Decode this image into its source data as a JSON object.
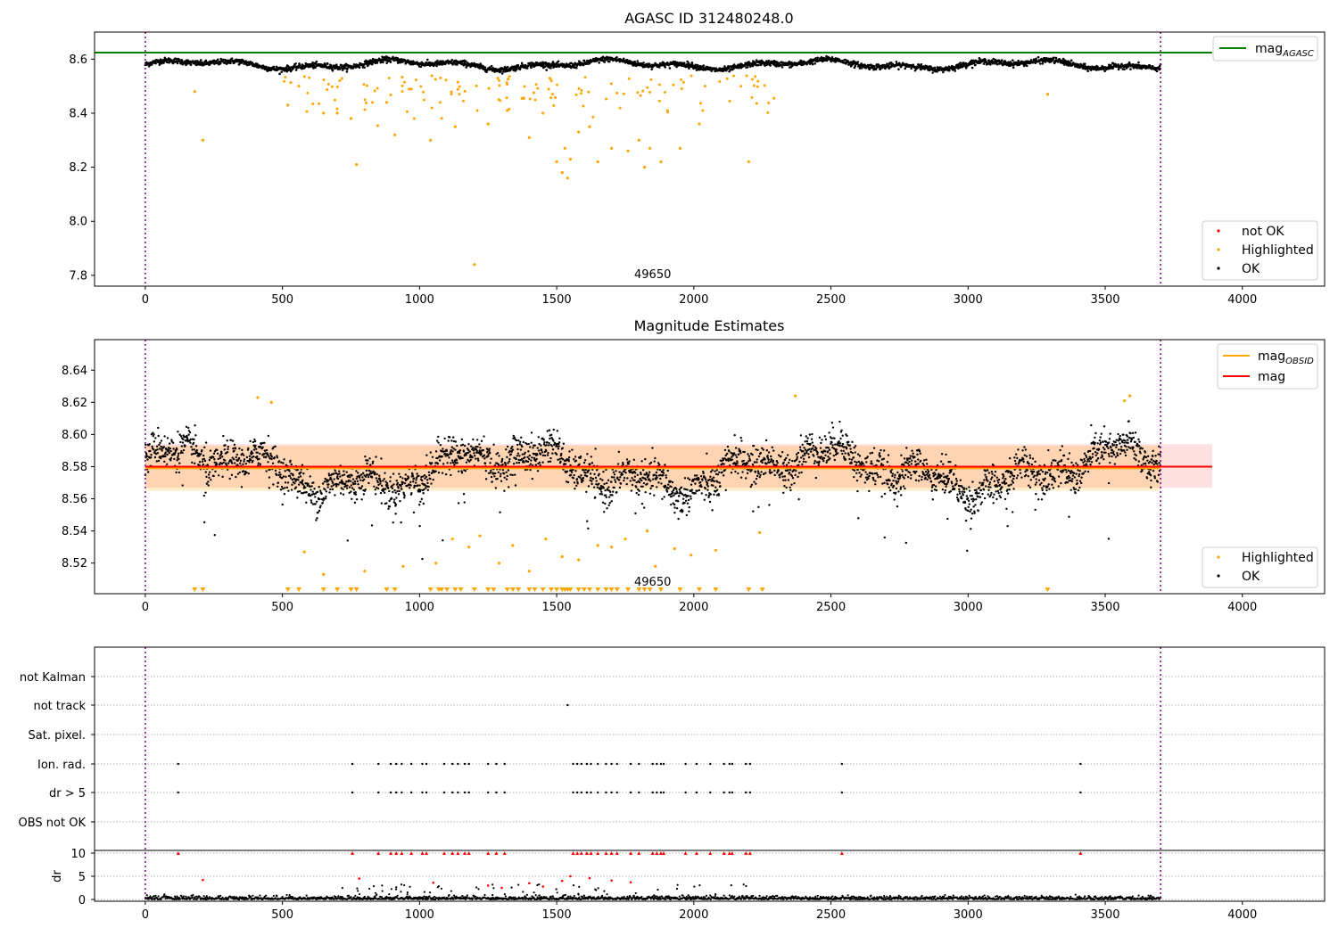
{
  "chart_data": [
    {
      "type": "scatter",
      "title": "AGASC ID 312480248.0",
      "xlim": [
        -185,
        4300
      ],
      "ylim": [
        7.76,
        8.7
      ],
      "xticks": [
        0,
        500,
        1000,
        1500,
        2000,
        2500,
        3000,
        3500,
        4000
      ],
      "yticks": [
        7.8,
        8.0,
        8.2,
        8.4,
        8.6
      ],
      "ytick_labels": [
        "7.8",
        "8.0",
        "8.2",
        "8.4",
        "8.6"
      ],
      "obsid_label": "49650",
      "obsid_bounds": [
        0,
        3702
      ],
      "mag_agasc": 8.624,
      "legend_lines": [
        {
          "name": "mag",
          "sub": "AGASC",
          "color": "#008000"
        }
      ],
      "legend_points": [
        {
          "name": "not OK",
          "color": "#ff0000"
        },
        {
          "name": "Highlighted",
          "color": "#ffa500"
        },
        {
          "name": "OK",
          "color": "#000000"
        }
      ],
      "series": [
        {
          "name": "OK",
          "color": "#000000",
          "description": "dense band near 8.58",
          "x_range": [
            0,
            3702
          ],
          "y_center": 8.58
        },
        {
          "name": "Highlighted",
          "color": "#ffa500",
          "x": [
            180,
            210,
            520,
            560,
            650,
            700,
            750,
            770,
            880,
            910,
            1040,
            1130,
            1200,
            1250,
            1320,
            1400,
            1450,
            1500,
            1520,
            1530,
            1540,
            1550,
            1580,
            1620,
            1650,
            1700,
            1760,
            1800,
            1820,
            1840,
            1880,
            1950,
            2020,
            2200,
            3290
          ],
          "y": [
            8.48,
            8.3,
            8.43,
            8.5,
            8.4,
            8.4,
            8.38,
            8.21,
            8.44,
            8.32,
            8.3,
            8.35,
            7.84,
            8.36,
            8.41,
            8.31,
            8.4,
            8.22,
            8.18,
            8.27,
            8.16,
            8.23,
            8.33,
            8.35,
            8.22,
            8.27,
            8.26,
            8.3,
            8.2,
            8.27,
            8.22,
            8.27,
            8.36,
            8.22,
            8.47
          ]
        }
      ]
    },
    {
      "type": "scatter",
      "title": "Magnitude Estimates",
      "xlim": [
        -185,
        4300
      ],
      "ylim": [
        8.501,
        8.659
      ],
      "xticks": [
        0,
        500,
        1000,
        1500,
        2000,
        2500,
        3000,
        3500,
        4000
      ],
      "yticks": [
        8.52,
        8.54,
        8.56,
        8.58,
        8.6,
        8.62,
        8.64
      ],
      "ytick_labels": [
        "8.52",
        "8.54",
        "8.56",
        "8.58",
        "8.60",
        "8.62",
        "8.64"
      ],
      "obsid_label": "49650",
      "obsid_bounds": [
        0,
        3702
      ],
      "mag": 8.58,
      "mag_obsid": 8.579,
      "mag_band": [
        8.567,
        8.594
      ],
      "mag_obsid_band": [
        8.565,
        8.593
      ],
      "legend_lines": [
        {
          "name": "mag",
          "sub": "OBSID",
          "color": "#ffa500"
        },
        {
          "name": "mag",
          "sub": "",
          "color": "#ff0000"
        }
      ],
      "legend_points": [
        {
          "name": "Highlighted",
          "color": "#ffa500"
        },
        {
          "name": "OK",
          "color": "#000000"
        }
      ],
      "series": [
        {
          "name": "OK",
          "color": "#000000",
          "description": "wandering band around 8.56–8.61",
          "x_range": [
            0,
            3702
          ],
          "y_center": 8.578
        },
        {
          "name": "Highlighted",
          "color": "#ffa500",
          "x": [
            410,
            460,
            580,
            650,
            800,
            940,
            1060,
            1120,
            1180,
            1220,
            1290,
            1340,
            1400,
            1460,
            1520,
            1580,
            1650,
            1700,
            1750,
            1830,
            1860,
            1930,
            1990,
            2080,
            2240,
            2370,
            3570,
            3590
          ],
          "y": [
            8.623,
            8.62,
            8.527,
            8.513,
            8.515,
            8.518,
            8.52,
            8.535,
            8.53,
            8.537,
            8.52,
            8.531,
            8.515,
            8.535,
            8.524,
            8.522,
            8.531,
            8.53,
            8.535,
            8.54,
            8.518,
            8.529,
            8.525,
            8.528,
            8.539,
            8.624,
            8.621,
            8.624
          ]
        }
      ],
      "offscale_x": [
        180,
        210,
        520,
        560,
        650,
        700,
        750,
        770,
        880,
        910,
        1040,
        1070,
        1080,
        1100,
        1130,
        1150,
        1200,
        1250,
        1270,
        1320,
        1340,
        1360,
        1400,
        1420,
        1450,
        1480,
        1500,
        1520,
        1530,
        1540,
        1550,
        1580,
        1600,
        1620,
        1650,
        1680,
        1700,
        1720,
        1760,
        1800,
        1820,
        1840,
        1880,
        1950,
        2020,
        2080,
        2200,
        2250,
        3290
      ]
    },
    {
      "type": "scatter",
      "xlim": [
        -185,
        4300
      ],
      "xticks": [
        0,
        500,
        1000,
        1500,
        2000,
        2500,
        3000,
        3500,
        4000
      ],
      "obsid_bounds": [
        0,
        3702
      ],
      "flag_rows": [
        "not Kalman",
        "not track",
        "Sat. pixel.",
        "Ion. rad.",
        "dr > 5",
        "OBS not OK"
      ],
      "flags": {
        "not track": [
          1540
        ],
        "Ion. rad.": [
          120,
          755,
          850,
          895,
          915,
          935,
          970,
          1010,
          1025,
          1090,
          1120,
          1140,
          1165,
          1180,
          1250,
          1280,
          1310,
          1560,
          1575,
          1590,
          1610,
          1625,
          1650,
          1680,
          1700,
          1720,
          1770,
          1800,
          1850,
          1865,
          1880,
          1890,
          1970,
          2010,
          2060,
          2110,
          2130,
          2140,
          2190,
          2205,
          2540,
          3410
        ],
        "dr > 5": [
          120,
          755,
          850,
          895,
          915,
          935,
          970,
          1010,
          1025,
          1090,
          1120,
          1140,
          1165,
          1180,
          1250,
          1280,
          1310,
          1560,
          1575,
          1590,
          1610,
          1625,
          1650,
          1680,
          1700,
          1720,
          1770,
          1800,
          1850,
          1865,
          1880,
          1890,
          1970,
          2010,
          2060,
          2110,
          2130,
          2140,
          2190,
          2205,
          2540,
          3410
        ]
      },
      "dr_ylabel": "dr",
      "dr_ylim": [
        0,
        10
      ],
      "dr_yticks": [
        0,
        5,
        10
      ],
      "dr_series": [
        {
          "name": "OK",
          "color": "#000000",
          "description": "dr near 0 across full range",
          "x_range": [
            0,
            3702
          ]
        },
        {
          "name": "not OK",
          "color": "#ff0000",
          "x": [
            210,
            780,
            1050,
            1250,
            1300,
            1400,
            1450,
            1520,
            1550,
            1620,
            1700,
            1770
          ],
          "y": [
            4.2,
            4.5,
            3.6,
            3.0,
            2.5,
            3.5,
            2.8,
            4.0,
            5.0,
            4.6,
            4.1,
            3.7
          ]
        }
      ]
    }
  ]
}
